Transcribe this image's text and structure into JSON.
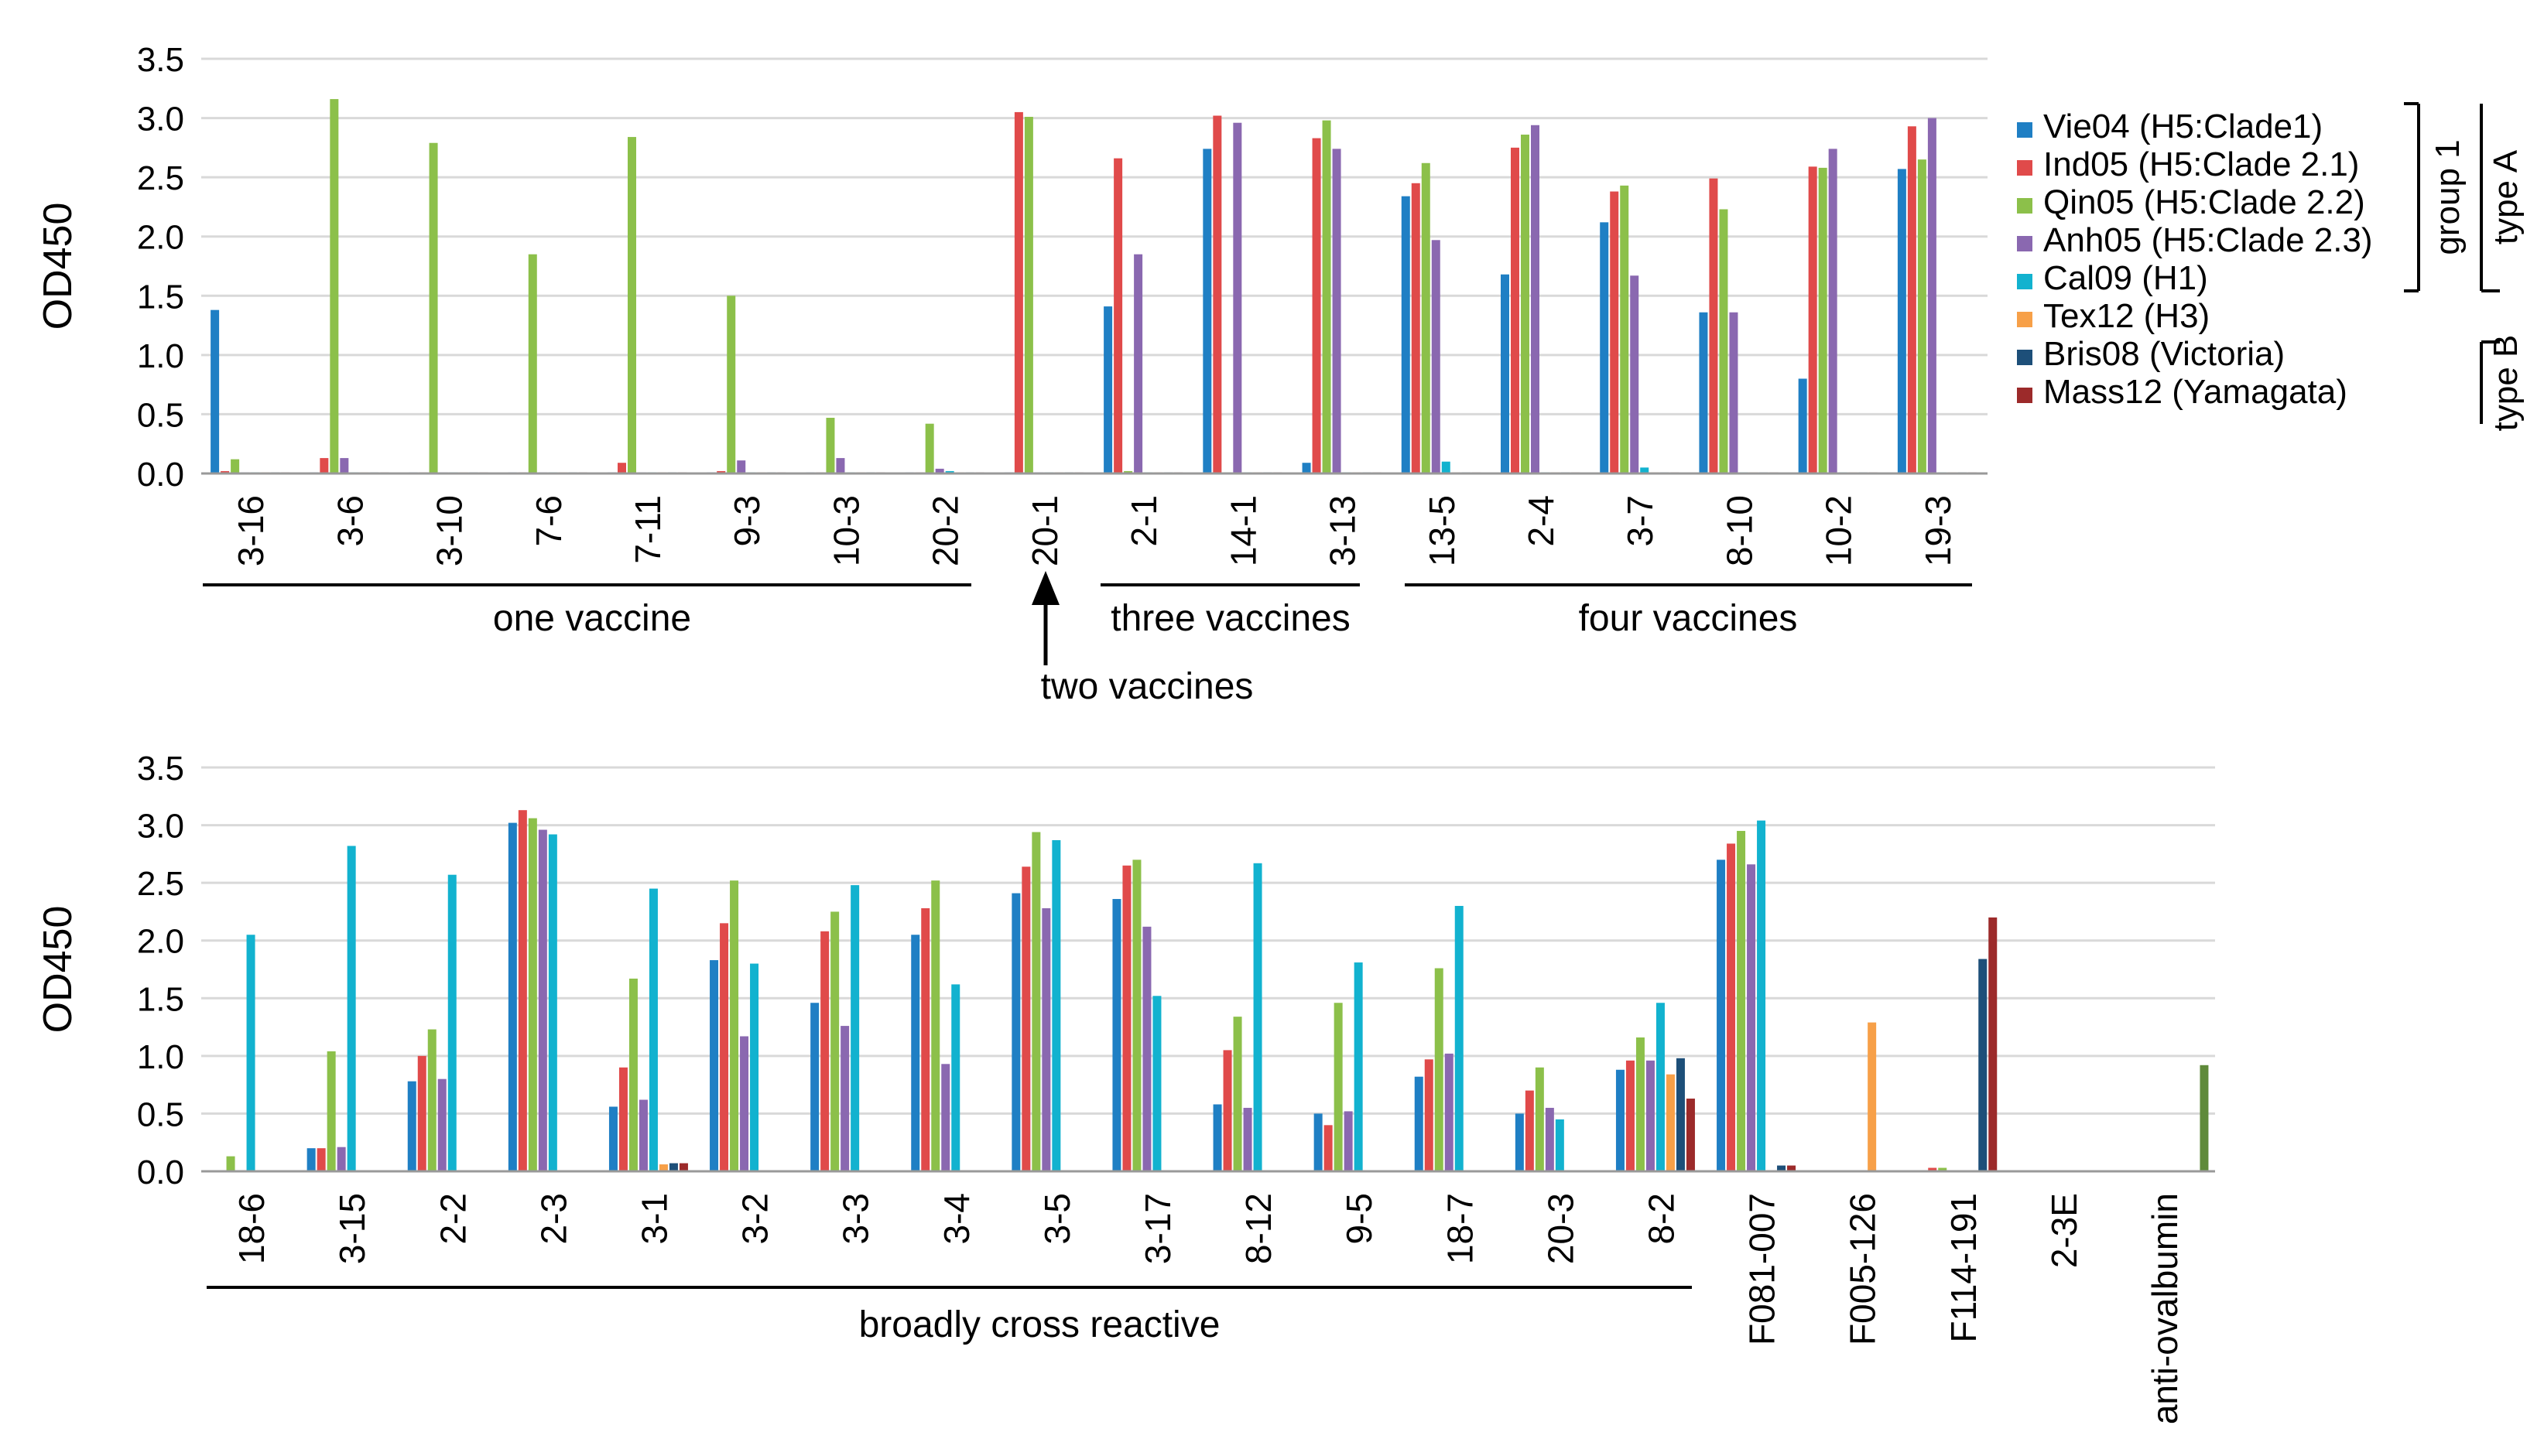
{
  "colors": {
    "Vie04": "#1f7fc4",
    "Ind05": "#e04a4a",
    "Qin05": "#8cc04a",
    "Anh05": "#8a68b0",
    "Cal09": "#12b2cf",
    "Tex12": "#f7a048",
    "Bris08": "#1d4f79",
    "Mass12": "#9c2a2a",
    "anti_ovalbumin": "#5f8a3a",
    "axis": "#999999",
    "grid": "#d9d9d9"
  },
  "legend": {
    "items": [
      {
        "key": "Vie04",
        "label": "Vie04 (H5:Clade1)"
      },
      {
        "key": "Ind05",
        "label": "Ind05 (H5:Clade 2.1)"
      },
      {
        "key": "Qin05",
        "label": "Qin05 (H5:Clade 2.2)"
      },
      {
        "key": "Anh05",
        "label": "Anh05 (H5:Clade 2.3)"
      },
      {
        "key": "Cal09",
        "label": "Cal09 (H1)"
      },
      {
        "key": "Tex12",
        "label": "Tex12 (H3)"
      },
      {
        "key": "Bris08",
        "label": "Bris08 (Victoria)"
      },
      {
        "key": "Mass12",
        "label": "Mass12 (Yamagata)"
      }
    ],
    "group1": "group 1",
    "typeA": "type A",
    "typeB": "type B"
  },
  "chart_data": [
    {
      "type": "bar",
      "ylabel": "OD450",
      "ylim": [
        0,
        3.5
      ],
      "yticks": [
        "0.0",
        "0.5",
        "1.0",
        "1.5",
        "2.0",
        "2.5",
        "3.0",
        "3.5"
      ],
      "grid": true,
      "series_names": [
        "Vie04",
        "Ind05",
        "Qin05",
        "Anh05",
        "Cal09",
        "Tex12",
        "Bris08",
        "Mass12"
      ],
      "categories": [
        "3-16",
        "3-6",
        "3-10",
        "7-6",
        "7-11",
        "9-3",
        "10-3",
        "20-2",
        "20-1",
        "2-1",
        "14-1",
        "3-13",
        "13-5",
        "2-4",
        "3-7",
        "8-10",
        "10-2",
        "19-3"
      ],
      "values": [
        [
          1.38,
          0.02,
          0.12,
          0.01,
          0.01,
          0.01,
          0.01,
          0.01
        ],
        [
          0.01,
          0.13,
          3.16,
          0.13,
          0.01,
          0.01,
          0.01,
          0.01
        ],
        [
          0.01,
          0.01,
          2.79,
          0.01,
          0.01,
          0.01,
          0.01,
          0.01
        ],
        [
          0.01,
          0.01,
          1.85,
          0.01,
          0.01,
          0.01,
          0.01,
          0.01
        ],
        [
          0.01,
          0.09,
          2.84,
          0.01,
          0.01,
          0.01,
          0.01,
          0.01
        ],
        [
          0.01,
          0.02,
          1.5,
          0.11,
          0.01,
          0.01,
          0.01,
          0.01
        ],
        [
          0.01,
          0.01,
          0.47,
          0.13,
          0.01,
          0.01,
          0.01,
          0.01
        ],
        [
          0.01,
          0.01,
          0.42,
          0.04,
          0.02,
          0.01,
          0.01,
          0.01
        ],
        [
          0.01,
          3.05,
          3.01,
          0.01,
          0.01,
          0.01,
          0.01,
          0.01
        ],
        [
          1.41,
          2.66,
          0.02,
          1.85,
          0.01,
          0.01,
          0.01,
          0.01
        ],
        [
          2.74,
          3.02,
          0.01,
          2.96,
          0.01,
          0.01,
          0.01,
          0.01
        ],
        [
          0.09,
          2.83,
          2.98,
          2.74,
          0.01,
          0.01,
          0.01,
          0.01
        ],
        [
          2.34,
          2.45,
          2.62,
          1.97,
          0.1,
          0.01,
          0.01,
          0.01
        ],
        [
          1.68,
          2.75,
          2.86,
          2.94,
          0.01,
          0.01,
          0.01,
          0.01
        ],
        [
          2.12,
          2.38,
          2.43,
          1.67,
          0.05,
          0.01,
          0.01,
          0.01
        ],
        [
          1.36,
          2.49,
          2.23,
          1.36,
          0.01,
          0.01,
          0.01,
          0.01
        ],
        [
          0.8,
          2.59,
          2.58,
          2.74,
          0.01,
          0.01,
          0.01,
          0.01
        ],
        [
          2.57,
          2.93,
          2.65,
          3.0,
          0.01,
          0.01,
          0.01,
          0.01
        ]
      ],
      "group_labels": {
        "one": "one vaccine",
        "two": "two vaccines",
        "three": "three vaccines",
        "four": "four vaccines"
      }
    },
    {
      "type": "bar",
      "ylabel": "OD450",
      "ylim": [
        0,
        3.5
      ],
      "yticks": [
        "0.0",
        "0.5",
        "1.0",
        "1.5",
        "2.0",
        "2.5",
        "3.0",
        "3.5"
      ],
      "grid": true,
      "series_names": [
        "Vie04",
        "Ind05",
        "Qin05",
        "Anh05",
        "Cal09",
        "Tex12",
        "Bris08",
        "Mass12",
        "anti_ovalbumin"
      ],
      "categories": [
        "18-6",
        "3-15",
        "2-2",
        "2-3",
        "3-1",
        "3-2",
        "3-3",
        "3-4",
        "3-5",
        "3-17",
        "8-12",
        "9-5",
        "18-7",
        "20-3",
        "8-2",
        "F081-007",
        "F005-126",
        "F114-191",
        "2-3E",
        "anti-ovalbumin"
      ],
      "values": [
        [
          0.01,
          0.01,
          0.13,
          0.01,
          2.05,
          0.01,
          0.01,
          0.01,
          0
        ],
        [
          0.2,
          0.2,
          1.04,
          0.21,
          2.82,
          0.01,
          0.01,
          0.01,
          0
        ],
        [
          0.78,
          1.0,
          1.23,
          0.8,
          2.57,
          0.01,
          0.01,
          0.01,
          0
        ],
        [
          3.02,
          3.13,
          3.06,
          2.96,
          2.92,
          0.01,
          0.01,
          0.01,
          0
        ],
        [
          0.56,
          0.9,
          1.67,
          0.62,
          2.45,
          0.06,
          0.07,
          0.07,
          0
        ],
        [
          1.83,
          2.15,
          2.52,
          1.17,
          1.8,
          0.01,
          0.01,
          0.01,
          0
        ],
        [
          1.46,
          2.08,
          2.25,
          1.26,
          2.48,
          0.01,
          0.01,
          0.01,
          0
        ],
        [
          2.05,
          2.28,
          2.52,
          0.93,
          1.62,
          0.01,
          0.01,
          0.01,
          0
        ],
        [
          2.41,
          2.64,
          2.94,
          2.28,
          2.87,
          0.01,
          0.01,
          0.01,
          0
        ],
        [
          2.36,
          2.65,
          2.7,
          2.12,
          1.52,
          0.01,
          0.01,
          0.01,
          0
        ],
        [
          0.58,
          1.05,
          1.34,
          0.55,
          2.67,
          0.01,
          0.01,
          0.01,
          0
        ],
        [
          0.5,
          0.4,
          1.46,
          0.52,
          1.81,
          0.01,
          0.01,
          0.01,
          0
        ],
        [
          0.82,
          0.97,
          1.76,
          1.02,
          2.3,
          0.01,
          0.01,
          0.01,
          0
        ],
        [
          0.5,
          0.7,
          0.9,
          0.55,
          0.45,
          0.01,
          0.01,
          0.01,
          0
        ],
        [
          0.88,
          0.96,
          1.16,
          0.96,
          1.46,
          0.84,
          0.98,
          0.63,
          0
        ],
        [
          2.7,
          2.84,
          2.95,
          2.66,
          3.04,
          0.01,
          0.05,
          0.05,
          0
        ],
        [
          0.01,
          0.01,
          0.01,
          0.01,
          0.01,
          1.29,
          0.01,
          0.01,
          0
        ],
        [
          0.01,
          0.03,
          0.03,
          0.01,
          0.01,
          0.01,
          1.84,
          2.2,
          0
        ],
        [
          0.01,
          0.01,
          0.01,
          0.01,
          0.01,
          0.01,
          0.01,
          0.01,
          0
        ],
        [
          0,
          0,
          0,
          0,
          0,
          0,
          0,
          0,
          0.92
        ]
      ],
      "group_labels": {
        "broad": "broadly cross reactive"
      }
    }
  ]
}
